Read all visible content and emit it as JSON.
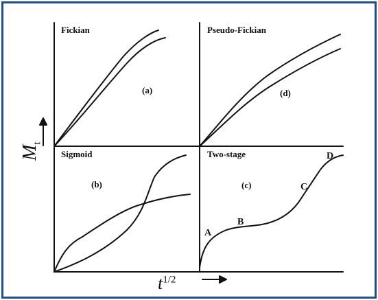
{
  "colors": {
    "frame": "#1f4e8c",
    "ink": "#111111"
  },
  "axes": {
    "y_label": "M",
    "y_sub": "t",
    "x_label": "t",
    "x_sup": "1/2"
  },
  "panels": {
    "fickian": {
      "title": "Fickian",
      "tag": "(a)"
    },
    "pseudo_fickian": {
      "title": "Pseudo-Fickian",
      "tag": "(d)"
    },
    "sigmoid": {
      "title": "Sigmoid",
      "tag": "(b)"
    },
    "two_stage": {
      "title": "Two-stage",
      "tag": "(c)",
      "points": [
        "A",
        "B",
        "C",
        "D"
      ]
    }
  }
}
